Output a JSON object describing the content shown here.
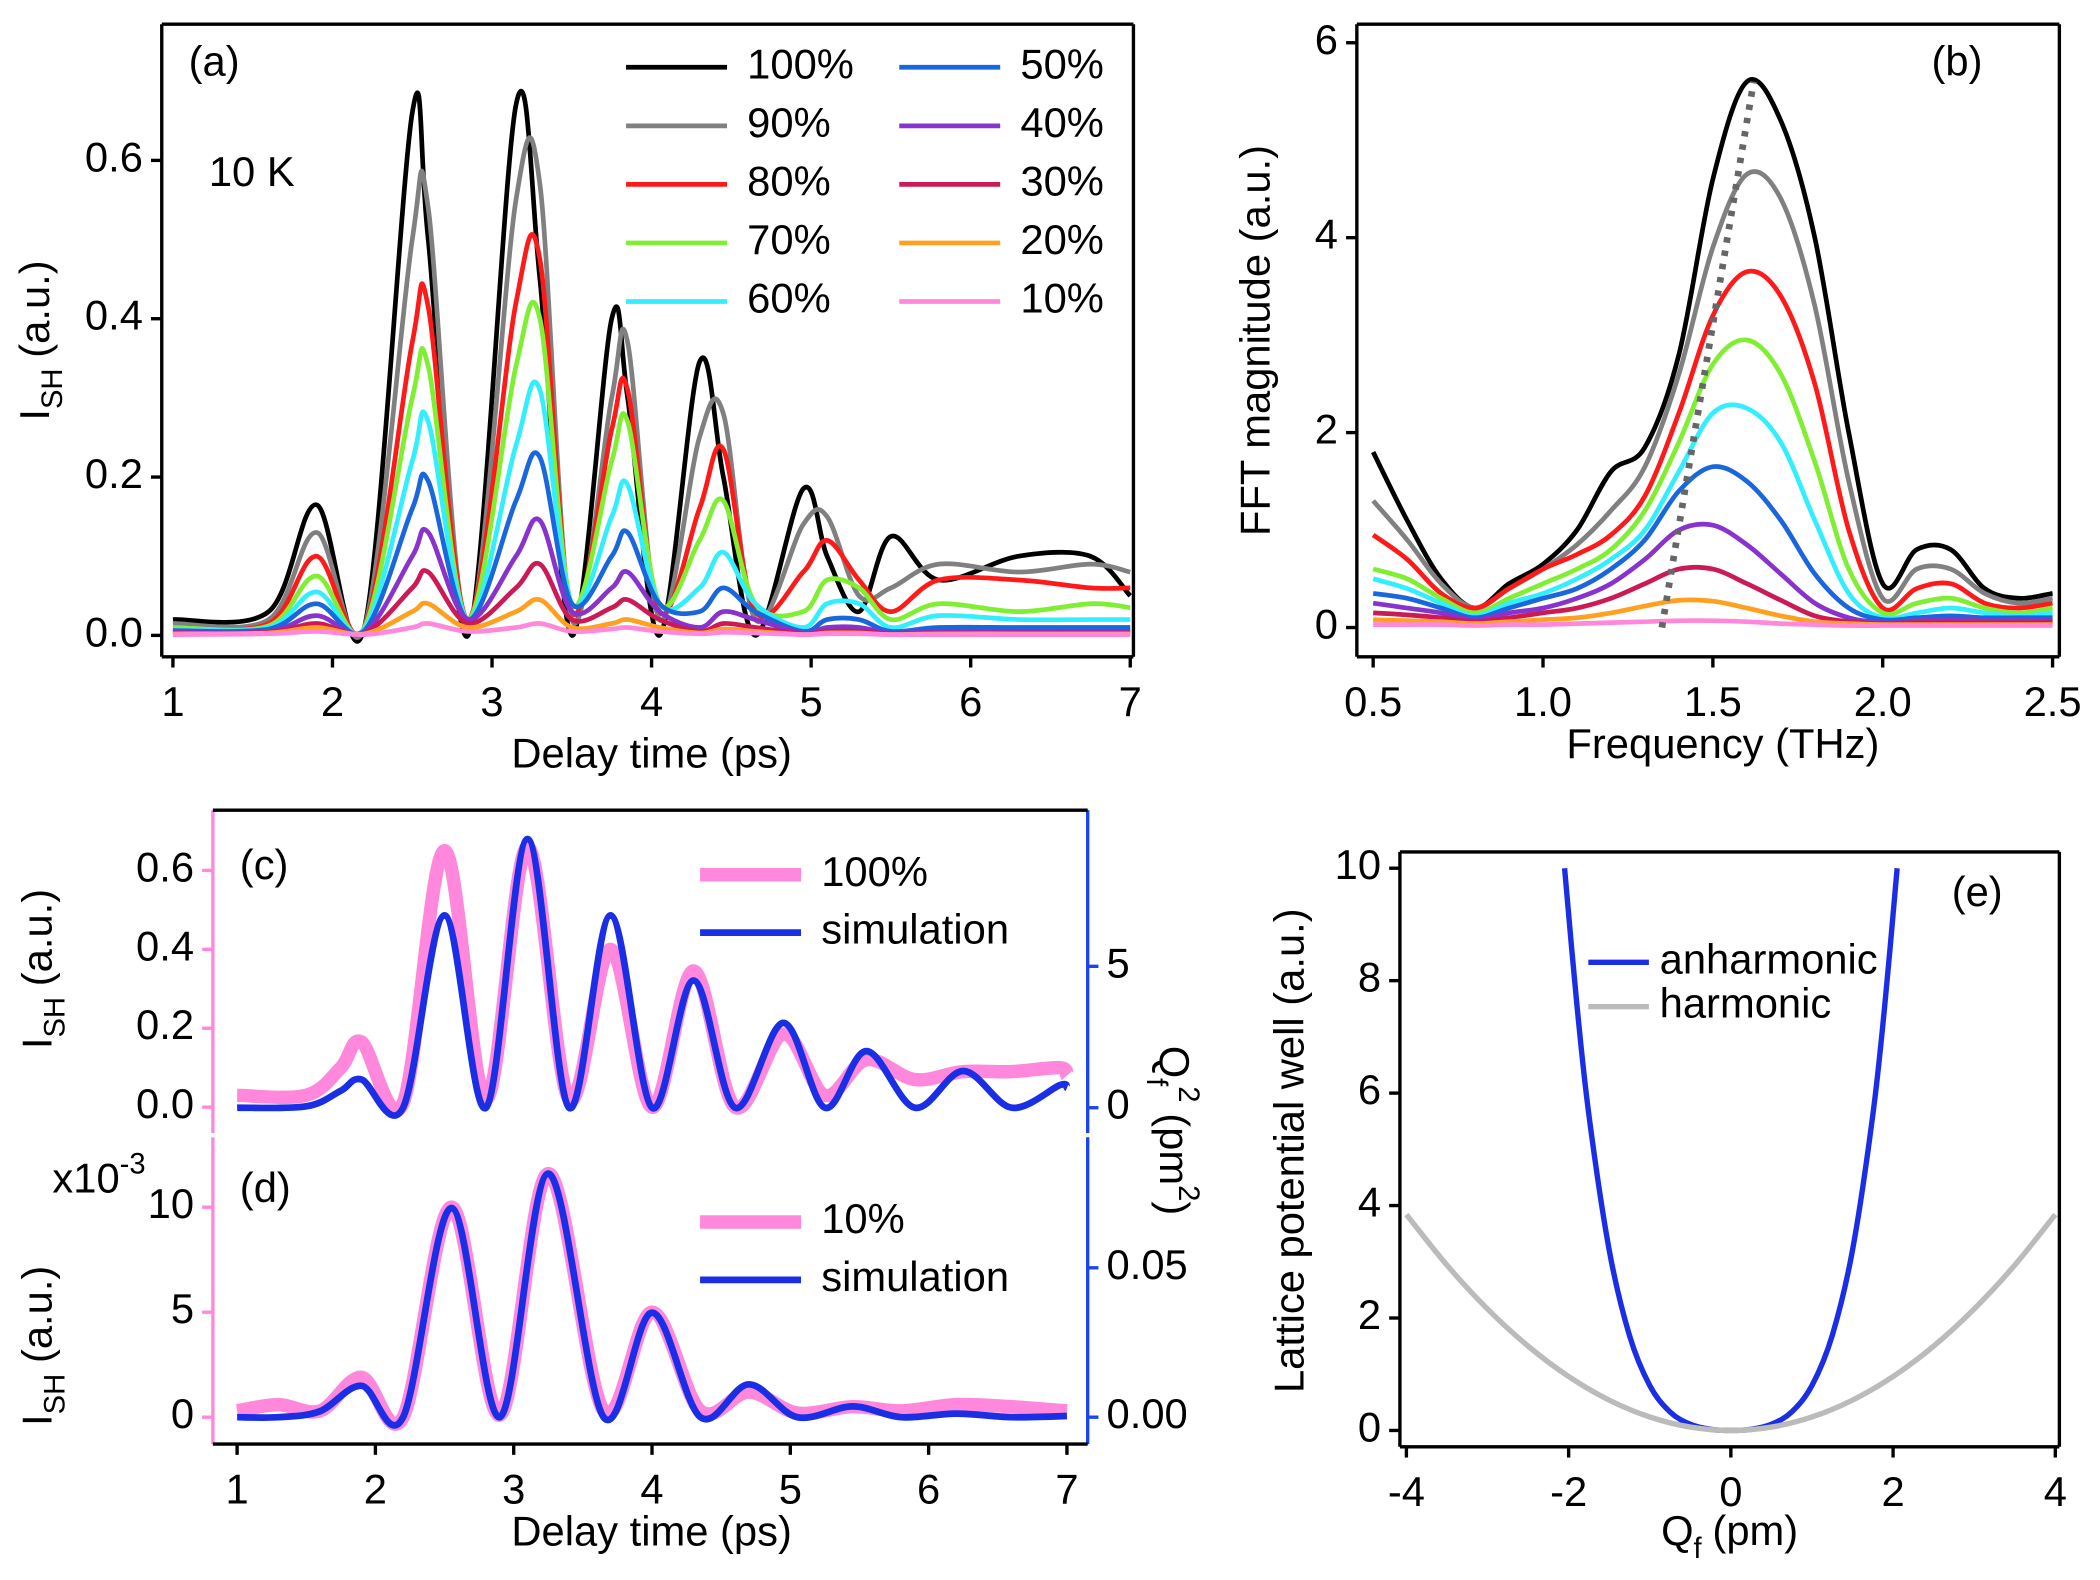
{
  "chart_data": [
    {
      "type": "line",
      "panel_label": "(a)",
      "annotation": "10 K",
      "xlabel": "Delay time (ps)",
      "ylabel": {
        "text": "I",
        "sub": "SH",
        "unit": "(a.u.)"
      },
      "xlim": [
        0.93,
        7.02
      ],
      "xticks": [
        1,
        2,
        3,
        4,
        5,
        6,
        7
      ],
      "ylim": [
        -0.027,
        0.772
      ],
      "yticks": [
        {
          "value": 0,
          "label": "0.0"
        },
        0.2,
        0.4,
        0.6
      ],
      "x": [
        1.0,
        1.6,
        1.9,
        2.2,
        2.5,
        2.6,
        2.85,
        3.15,
        3.3,
        3.5,
        3.75,
        3.85,
        4.05,
        4.3,
        4.45,
        4.65,
        4.95,
        5.1,
        5.3,
        5.5,
        5.8,
        6.3,
        6.75,
        7.0
      ],
      "series": [
        {
          "name": "100%",
          "color": "#000000",
          "values": [
            0.02,
            0.03,
            0.165,
            0.01,
            0.66,
            0.5,
            0.0,
            0.67,
            0.45,
            0.0,
            0.4,
            0.3,
            0.0,
            0.345,
            0.2,
            0.0,
            0.185,
            0.1,
            0.03,
            0.125,
            0.07,
            0.1,
            0.1,
            0.05
          ]
        },
        {
          "name": "90%",
          "color": "#808080",
          "values": [
            0.015,
            0.02,
            0.13,
            0.01,
            0.5,
            0.54,
            0.01,
            0.55,
            0.57,
            0.02,
            0.3,
            0.37,
            0.02,
            0.25,
            0.28,
            0.02,
            0.14,
            0.15,
            0.05,
            0.06,
            0.09,
            0.08,
            0.09,
            0.08
          ]
        },
        {
          "name": "80%",
          "color": "#ff1a1a",
          "values": [
            0.01,
            0.015,
            0.1,
            0.01,
            0.37,
            0.415,
            0.02,
            0.42,
            0.475,
            0.03,
            0.26,
            0.31,
            0.03,
            0.16,
            0.235,
            0.03,
            0.08,
            0.12,
            0.07,
            0.03,
            0.07,
            0.07,
            0.06,
            0.06
          ]
        },
        {
          "name": "70%",
          "color": "#80ee33",
          "values": [
            0.01,
            0.012,
            0.075,
            0.01,
            0.3,
            0.34,
            0.02,
            0.34,
            0.4,
            0.04,
            0.22,
            0.27,
            0.04,
            0.12,
            0.17,
            0.04,
            0.03,
            0.07,
            0.06,
            0.02,
            0.04,
            0.03,
            0.04,
            0.035
          ]
        },
        {
          "name": "60%",
          "color": "#33eeff",
          "values": [
            0.008,
            0.01,
            0.055,
            0.008,
            0.22,
            0.27,
            0.02,
            0.24,
            0.31,
            0.04,
            0.15,
            0.19,
            0.04,
            0.06,
            0.105,
            0.04,
            0.01,
            0.04,
            0.04,
            0.01,
            0.025,
            0.02,
            0.02,
            0.02
          ]
        },
        {
          "name": "50%",
          "color": "#1a66dd",
          "values": [
            0.006,
            0.008,
            0.04,
            0.006,
            0.16,
            0.195,
            0.02,
            0.17,
            0.225,
            0.04,
            0.1,
            0.13,
            0.04,
            0.03,
            0.06,
            0.03,
            0.005,
            0.02,
            0.02,
            0.005,
            0.01,
            0.01,
            0.01,
            0.01
          ]
        },
        {
          "name": "40%",
          "color": "#8833cc",
          "values": [
            0.004,
            0.005,
            0.025,
            0.004,
            0.1,
            0.13,
            0.02,
            0.1,
            0.145,
            0.03,
            0.06,
            0.08,
            0.03,
            0.01,
            0.03,
            0.02,
            0.003,
            0.01,
            0.01,
            0.003,
            0.005,
            0.005,
            0.005,
            0.005
          ]
        },
        {
          "name": "30%",
          "color": "#cc1a55",
          "values": [
            0.003,
            0.004,
            0.015,
            0.003,
            0.06,
            0.08,
            0.015,
            0.06,
            0.09,
            0.02,
            0.035,
            0.045,
            0.02,
            0.005,
            0.015,
            0.01,
            0.002,
            0.005,
            0.005,
            0.002,
            0.003,
            0.003,
            0.003,
            0.003
          ]
        },
        {
          "name": "20%",
          "color": "#ffa020",
          "values": [
            0.002,
            0.003,
            0.01,
            0.002,
            0.03,
            0.04,
            0.01,
            0.03,
            0.045,
            0.01,
            0.015,
            0.02,
            0.01,
            0.003,
            0.008,
            0.005,
            0.001,
            0.003,
            0.003,
            0.001,
            0.002,
            0.002,
            0.002,
            0.002
          ]
        },
        {
          "name": "10%",
          "color": "#ff88dd",
          "values": [
            0.001,
            0.002,
            0.005,
            0.001,
            0.01,
            0.015,
            0.005,
            0.01,
            0.015,
            0.005,
            0.008,
            0.01,
            0.005,
            0.002,
            0.004,
            0.003,
            0.001,
            0.002,
            0.002,
            0.001,
            0.001,
            0.001,
            0.001,
            0.001
          ]
        }
      ]
    },
    {
      "type": "line",
      "panel_label": "(b)",
      "xlabel": "Frequency (THz)",
      "ylabel": "FFT magnitude (a.u.)",
      "xlim": [
        0.452,
        2.52
      ],
      "xticks": [
        0.5,
        {
          "value": 1,
          "label": "1.0"
        },
        1.5,
        {
          "value": 2,
          "label": "2.0"
        },
        2.5
      ],
      "ylim": [
        -0.3,
        6.19
      ],
      "yticks": [
        0,
        2,
        4,
        6
      ],
      "x": [
        0.5,
        0.6,
        0.7,
        0.8,
        0.9,
        1.0,
        1.1,
        1.2,
        1.3,
        1.4,
        1.5,
        1.6,
        1.7,
        1.8,
        1.9,
        2.0,
        2.1,
        2.2,
        2.3,
        2.4,
        2.5
      ],
      "guide": {
        "x": [
          1.35,
          1.62
        ],
        "values": [
          0,
          5.6
        ],
        "color": "#666666"
      },
      "series": [
        {
          "name": "100%",
          "color": "#000000",
          "values": [
            1.8,
            1.1,
            0.5,
            0.2,
            0.45,
            0.65,
            1.0,
            1.6,
            1.85,
            2.8,
            4.6,
            5.6,
            5.2,
            4.0,
            2.0,
            0.45,
            0.8,
            0.8,
            0.4,
            0.3,
            0.35
          ]
        },
        {
          "name": "90%",
          "color": "#808080",
          "values": [
            1.3,
            0.9,
            0.45,
            0.2,
            0.4,
            0.6,
            0.85,
            1.2,
            1.65,
            2.6,
            3.9,
            4.65,
            4.4,
            3.3,
            1.5,
            0.3,
            0.6,
            0.6,
            0.35,
            0.25,
            0.3
          ]
        },
        {
          "name": "80%",
          "color": "#ff1a1a",
          "values": [
            0.95,
            0.7,
            0.35,
            0.2,
            0.4,
            0.6,
            0.75,
            0.95,
            1.35,
            2.2,
            3.2,
            3.65,
            3.4,
            2.5,
            1.0,
            0.2,
            0.4,
            0.45,
            0.25,
            0.2,
            0.25
          ]
        },
        {
          "name": "70%",
          "color": "#80ee33",
          "values": [
            0.6,
            0.5,
            0.3,
            0.15,
            0.3,
            0.45,
            0.6,
            0.8,
            1.2,
            1.9,
            2.7,
            2.95,
            2.6,
            1.7,
            0.6,
            0.15,
            0.25,
            0.3,
            0.2,
            0.15,
            0.2
          ]
        },
        {
          "name": "60%",
          "color": "#33eeff",
          "values": [
            0.5,
            0.4,
            0.25,
            0.12,
            0.25,
            0.35,
            0.5,
            0.7,
            1.0,
            1.6,
            2.2,
            2.25,
            1.9,
            1.1,
            0.35,
            0.1,
            0.15,
            0.2,
            0.15,
            0.12,
            0.15
          ]
        },
        {
          "name": "50%",
          "color": "#1a66dd",
          "values": [
            0.35,
            0.3,
            0.2,
            0.1,
            0.2,
            0.3,
            0.4,
            0.6,
            0.9,
            1.4,
            1.65,
            1.5,
            1.1,
            0.55,
            0.2,
            0.08,
            0.1,
            0.12,
            0.1,
            0.1,
            0.1
          ]
        },
        {
          "name": "40%",
          "color": "#8833cc",
          "values": [
            0.25,
            0.2,
            0.15,
            0.08,
            0.15,
            0.2,
            0.3,
            0.45,
            0.7,
            1.0,
            1.05,
            0.85,
            0.55,
            0.25,
            0.1,
            0.05,
            0.07,
            0.08,
            0.07,
            0.07,
            0.07
          ]
        },
        {
          "name": "30%",
          "color": "#cc1a55",
          "values": [
            0.15,
            0.13,
            0.1,
            0.06,
            0.1,
            0.15,
            0.2,
            0.3,
            0.45,
            0.6,
            0.6,
            0.45,
            0.28,
            0.12,
            0.06,
            0.04,
            0.05,
            0.05,
            0.05,
            0.05,
            0.05
          ]
        },
        {
          "name": "20%",
          "color": "#ffa020",
          "values": [
            0.08,
            0.07,
            0.06,
            0.04,
            0.06,
            0.08,
            0.1,
            0.15,
            0.22,
            0.28,
            0.27,
            0.2,
            0.12,
            0.06,
            0.04,
            0.03,
            0.03,
            0.03,
            0.03,
            0.03,
            0.03
          ]
        },
        {
          "name": "10%",
          "color": "#ff88dd",
          "values": [
            0.03,
            0.03,
            0.03,
            0.02,
            0.03,
            0.03,
            0.04,
            0.05,
            0.06,
            0.07,
            0.07,
            0.06,
            0.04,
            0.03,
            0.02,
            0.02,
            0.02,
            0.02,
            0.02,
            0.02,
            0.02
          ]
        }
      ]
    },
    {
      "type": "line",
      "panel_label": "(c)",
      "ylabel": {
        "text": "I",
        "sub": "SH",
        "unit": "(a.u.)"
      },
      "y2label": {
        "text": "Q",
        "sub": "f",
        "sup": "2",
        "unit": "(pm",
        "unit_sup": "2",
        "unit_end": ")"
      },
      "xlim": [
        0.825,
        7.15
      ],
      "ylim": [
        -0.066,
        0.7526
      ],
      "yticks": [
        {
          "value": 0,
          "label": "0.0"
        },
        0.2,
        0.4,
        0.6
      ],
      "y2lim": [
        -0.9,
        10.52
      ],
      "y2ticks": [
        0,
        5
      ],
      "x": [
        1.0,
        1.5,
        1.75,
        1.9,
        2.2,
        2.5,
        2.8,
        3.1,
        3.4,
        3.7,
        4.0,
        4.3,
        4.6,
        4.95,
        5.25,
        5.55,
        5.9,
        6.25,
        6.6,
        6.95,
        7.0
      ],
      "series": [
        {
          "name": "100%",
          "color": "#ff88dd",
          "values": [
            0.03,
            0.03,
            0.1,
            0.165,
            0.01,
            0.65,
            0.02,
            0.66,
            0.02,
            0.4,
            0.0,
            0.345,
            0.0,
            0.185,
            0.03,
            0.12,
            0.07,
            0.09,
            0.09,
            0.1,
            0.08
          ]
        },
        {
          "name": "simulation",
          "color": "#1a2ee6",
          "axis": "y2",
          "values": [
            0,
            0.05,
            0.6,
            1.0,
            0,
            6.8,
            0,
            9.5,
            0,
            6.8,
            0,
            4.5,
            0,
            3.0,
            0,
            2.0,
            0,
            1.3,
            0,
            0.8,
            0.7
          ]
        }
      ]
    },
    {
      "type": "line",
      "panel_label": "(d)",
      "xlabel": "Delay time (ps)",
      "ylabel": {
        "text": "I",
        "sub": "SH",
        "unit": "(a.u.)"
      },
      "multiplier": {
        "text": "x10",
        "sup": "-3"
      },
      "xlim": [
        0.825,
        7.15
      ],
      "xticks": [
        1,
        2,
        3,
        4,
        5,
        6,
        7
      ],
      "ylim": [
        -1.28,
        13.33
      ],
      "yticks": [
        0,
        5,
        10
      ],
      "y2lim": [
        -0.009,
        0.0937
      ],
      "y2ticks": [
        {
          "value": 0,
          "label": "0.00"
        },
        0.05
      ],
      "x": [
        1.0,
        1.3,
        1.6,
        1.9,
        2.2,
        2.55,
        2.9,
        3.25,
        3.65,
        4.0,
        4.35,
        4.7,
        5.05,
        5.45,
        5.8,
        6.2,
        6.6,
        7.0
      ],
      "series": [
        {
          "name": "10%",
          "color": "#ff88dd",
          "values": [
            0.3,
            0.6,
            0.3,
            1.9,
            0.0,
            10.0,
            0.1,
            11.6,
            0.3,
            5.0,
            0.3,
            1.2,
            0.2,
            0.5,
            0.3,
            0.6,
            0.5,
            0.3
          ]
        },
        {
          "name": "simulation",
          "color": "#1a2ee6",
          "axis": "y2",
          "values": [
            0,
            0,
            0.002,
            0.0105,
            0,
            0.07,
            0,
            0.0815,
            0,
            0.035,
            0,
            0.011,
            0,
            0.0036,
            0,
            0.0012,
            0,
            0.0004
          ]
        }
      ]
    },
    {
      "type": "line",
      "panel_label": "(e)",
      "xlabel": {
        "text": "Q",
        "sub": "f",
        "unit": "(pm)"
      },
      "ylabel": "Lattice potential well (a.u.)",
      "xlim": [
        -4.08,
        4.05
      ],
      "xticks": [
        -4,
        -2,
        0,
        2,
        4
      ],
      "ylim": [
        -0.29,
        10.29
      ],
      "yticks": [
        0,
        2,
        4,
        6,
        8,
        10
      ],
      "series": [
        {
          "name": "anharmonic",
          "color": "#1a2ee6",
          "x": [
            -2.05,
            -1.9,
            -1.75,
            -1.5,
            -1.25,
            -1,
            -0.75,
            -0.5,
            -0.25,
            0,
            0.25,
            0.5,
            0.75,
            1,
            1.25,
            1.5,
            1.75,
            1.9,
            2.05
          ],
          "values": [
            10.0,
            7.6,
            5.61,
            3.21,
            1.69,
            0.8,
            0.33,
            0.11,
            0.02,
            0,
            0.02,
            0.11,
            0.33,
            0.8,
            1.69,
            3.21,
            5.61,
            7.6,
            10.0
          ]
        },
        {
          "name": "harmonic",
          "color": "#bbbbbb",
          "x": [
            -4,
            -3.5,
            -3,
            -2.5,
            -2,
            -1.5,
            -1,
            -0.5,
            0,
            0.5,
            1,
            1.5,
            2,
            2.5,
            3,
            3.5,
            4
          ],
          "values": [
            3.84,
            2.94,
            2.16,
            1.5,
            0.96,
            0.54,
            0.24,
            0.06,
            0,
            0.06,
            0.24,
            0.54,
            0.96,
            1.5,
            2.16,
            2.94,
            3.84
          ]
        }
      ]
    }
  ]
}
